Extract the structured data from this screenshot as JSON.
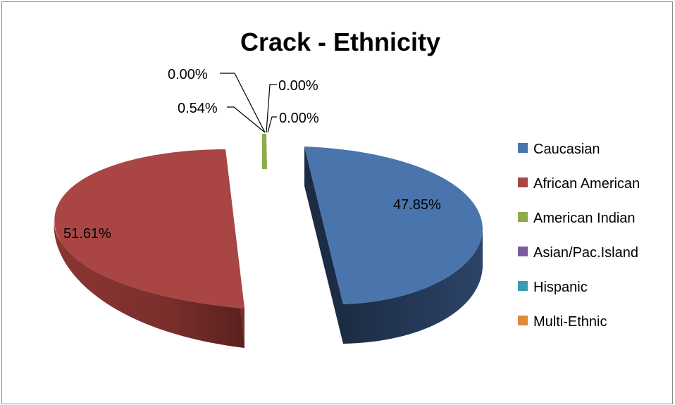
{
  "chart_data": {
    "type": "pie",
    "title": "Crack - Ethnicity",
    "categories": [
      "Caucasian",
      "African American",
      "American Indian",
      "Asian/Pac.Island",
      "Hispanic",
      "Multi-Ethnic"
    ],
    "values": [
      47.85,
      51.61,
      0.54,
      0.0,
      0.0,
      0.0
    ],
    "data_labels": [
      "47.85%",
      "51.61%",
      "0.54%",
      "0.00%",
      "0.00%",
      "0.00%"
    ],
    "colors": [
      "#4a74ac",
      "#a94643",
      "#8cac4a",
      "#7a5c9e",
      "#3c9bb5",
      "#e08a3c"
    ],
    "legend_position": "right",
    "exploded": true,
    "style": "3d"
  }
}
